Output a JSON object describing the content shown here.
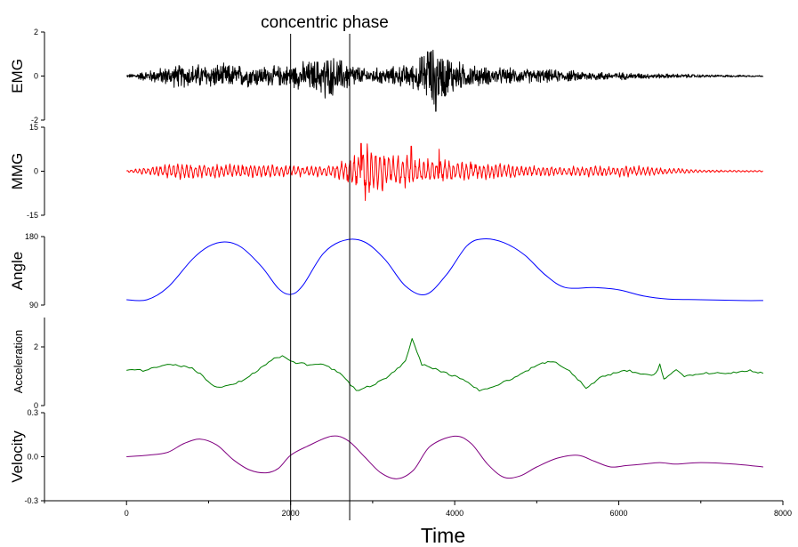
{
  "chart_data": {
    "type": "line",
    "title": "",
    "annotation": "concentric phase",
    "xlabel": "Time",
    "xlim": [
      -1000,
      8000
    ],
    "xticks": [
      0,
      2000,
      4000,
      6000,
      8000
    ],
    "xtick_labels": [
      "0",
      "2000",
      "4000",
      "6000",
      "8000"
    ],
    "vlines_x": [
      2000,
      2720
    ],
    "panels": [
      {
        "name": "EMG",
        "ylabel": "EMG",
        "ylim": [
          -2,
          2
        ],
        "yticks": [
          -2,
          0,
          2
        ],
        "ytick_labels": [
          "-2",
          "0",
          "2"
        ],
        "color": "#000000",
        "label_size": 17,
        "style": "noise",
        "envelope_x": [
          0,
          300,
          600,
          1000,
          1400,
          1800,
          2000,
          2200,
          2500,
          2700,
          2900,
          3200,
          3500,
          3700,
          3900,
          4100,
          4400,
          4800,
          5200,
          5600,
          6000,
          6400,
          6800,
          7200,
          7760
        ],
        "envelope_y": [
          0.05,
          0.25,
          0.45,
          0.5,
          0.45,
          0.4,
          0.45,
          0.6,
          0.8,
          0.6,
          0.3,
          0.35,
          0.5,
          1.2,
          0.9,
          0.5,
          0.35,
          0.3,
          0.25,
          0.2,
          0.15,
          0.1,
          0.08,
          0.05,
          0.03
        ],
        "spikes": [
          {
            "x": 3770,
            "y": -1.6
          },
          {
            "x": 2420,
            "y": -1.0
          },
          {
            "x": 3670,
            "y": 1.1
          }
        ]
      },
      {
        "name": "MMG",
        "ylabel": "MMG",
        "ylim": [
          -15,
          15
        ],
        "yticks": [
          -15,
          0,
          15
        ],
        "ytick_labels": [
          "-15",
          "0",
          "15"
        ],
        "color": "#ff0000",
        "label_size": 17,
        "style": "oscillation",
        "envelope_x": [
          0,
          300,
          500,
          900,
          1500,
          2000,
          2500,
          2800,
          2900,
          3100,
          3400,
          3700,
          4000,
          4500,
          5000,
          5500,
          6000,
          6500,
          7000,
          7760
        ],
        "envelope_y": [
          0.2,
          1.5,
          2.5,
          2.0,
          2.2,
          1.5,
          1.8,
          5,
          9,
          6,
          4.5,
          3.5,
          3,
          2.5,
          1.5,
          1.5,
          1.8,
          1.2,
          0.4,
          0.2
        ],
        "spikes": [
          {
            "x": 2860,
            "y": 9.5
          },
          {
            "x": 2910,
            "y": -10.0
          },
          {
            "x": 3470,
            "y": 8.5
          },
          {
            "x": 3810,
            "y": 7.5
          }
        ]
      },
      {
        "name": "Angle",
        "ylabel": "Angle",
        "ylim": [
          90,
          180
        ],
        "yticks": [
          90,
          180
        ],
        "ytick_labels": [
          "90",
          "180"
        ],
        "color": "#0000ff",
        "label_size": 17,
        "style": "smooth",
        "x": [
          0,
          250,
          500,
          800,
          1000,
          1200,
          1400,
          1650,
          1850,
          2000,
          2150,
          2400,
          2650,
          2900,
          3150,
          3400,
          3650,
          3900,
          4150,
          4350,
          4600,
          4850,
          5100,
          5350,
          5700,
          6000,
          6300,
          6600,
          7000,
          7500,
          7760
        ],
        "y": [
          97,
          97,
          113,
          150,
          167,
          173,
          166,
          140,
          112,
          104,
          116,
          158,
          175,
          173,
          150,
          115,
          104,
          130,
          168,
          177,
          172,
          156,
          130,
          113,
          113,
          110,
          102,
          98,
          97,
          96,
          96
        ]
      },
      {
        "name": "Acceleration",
        "ylabel": "Acceleration",
        "ylim": [
          0,
          3
        ],
        "yticks": [
          0,
          2
        ],
        "ytick_labels": [
          "0",
          "2"
        ],
        "color": "#007f00",
        "label_size": 13,
        "style": "jagged",
        "x": [
          0,
          200,
          500,
          800,
          1100,
          1300,
          1500,
          1800,
          1900,
          2000,
          2200,
          2400,
          2600,
          2800,
          3000,
          3200,
          3400,
          3480,
          3600,
          3800,
          4100,
          4300,
          4500,
          4700,
          4900,
          5000,
          5200,
          5400,
          5600,
          5800,
          6100,
          6400,
          6450,
          6500,
          6550,
          6600,
          6700,
          6800,
          7000,
          7300,
          7600,
          7760
        ],
        "y": [
          1.2,
          1.2,
          1.4,
          1.3,
          0.6,
          0.7,
          1.0,
          1.6,
          1.7,
          1.5,
          1.4,
          1.4,
          1.1,
          0.5,
          0.7,
          1.0,
          1.5,
          2.3,
          1.4,
          1.2,
          0.9,
          0.5,
          0.7,
          0.9,
          1.2,
          1.4,
          1.5,
          1.2,
          0.6,
          1.0,
          1.2,
          1.0,
          1.1,
          1.4,
          0.9,
          1.0,
          1.2,
          1.0,
          1.1,
          1.1,
          1.2,
          1.1
        ]
      },
      {
        "name": "Velocity",
        "ylabel": "Velocity",
        "ylim": [
          -0.3,
          0.3
        ],
        "yticks": [
          -0.3,
          0.0,
          0.3
        ],
        "ytick_labels": [
          "-0.3",
          "0.0",
          "0.3"
        ],
        "color": "#800080",
        "label_size": 17,
        "style": "smooth",
        "x": [
          0,
          250,
          500,
          700,
          900,
          1100,
          1300,
          1500,
          1700,
          1850,
          2000,
          2200,
          2500,
          2700,
          2900,
          3100,
          3300,
          3500,
          3700,
          4000,
          4200,
          4400,
          4600,
          4800,
          5000,
          5250,
          5500,
          5700,
          5900,
          6100,
          6300,
          6500,
          6700,
          7000,
          7400,
          7760
        ],
        "y": [
          0.0,
          0.01,
          0.03,
          0.09,
          0.12,
          0.08,
          -0.02,
          -0.09,
          -0.11,
          -0.08,
          0.01,
          0.07,
          0.14,
          0.11,
          0.0,
          -0.11,
          -0.15,
          -0.09,
          0.07,
          0.14,
          0.09,
          -0.05,
          -0.14,
          -0.13,
          -0.07,
          -0.01,
          0.01,
          -0.03,
          -0.07,
          -0.06,
          -0.05,
          -0.04,
          -0.05,
          -0.04,
          -0.05,
          -0.07
        ]
      }
    ]
  }
}
